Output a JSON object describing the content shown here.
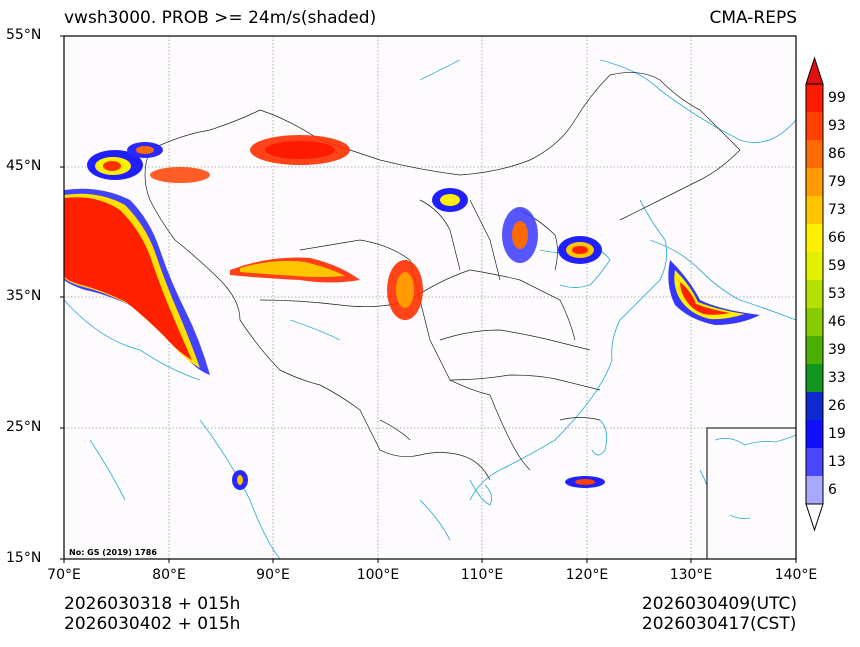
{
  "header": {
    "title": "vwsh3000. PROB >= 24m/s(shaded)",
    "source": "CMA-REPS"
  },
  "axes": {
    "lat_labels": [
      "55°N",
      "45°N",
      "35°N",
      "25°N",
      "15°N"
    ],
    "lon_labels": [
      "70°E",
      "80°E",
      "90°E",
      "100°E",
      "110°E",
      "120°E",
      "130°E",
      "140°E"
    ]
  },
  "colorbar": {
    "labels": [
      "99",
      "93",
      "86",
      "79",
      "73",
      "66",
      "59",
      "53",
      "46",
      "39",
      "33",
      "26",
      "19",
      "13",
      "6"
    ],
    "colors": [
      "#ff1a00",
      "#ff4000",
      "#ff6a00",
      "#ff9a00",
      "#ffc600",
      "#fff000",
      "#e2f000",
      "#b6e000",
      "#86cc00",
      "#4cb000",
      "#12961e",
      "#0d2ad0",
      "#1010ff",
      "#4848ff",
      "#a8a8ff"
    ],
    "over_color": "#e01010",
    "under_color": "#ffffff"
  },
  "stamp": "No: GS (2019) 1786",
  "footer": {
    "init_utc": "2026030318  +  015h",
    "init_cst": "2026030402  +  015h",
    "valid_utc": "2026030409(UTC)",
    "valid_cst": "2026030417(CST)"
  }
}
